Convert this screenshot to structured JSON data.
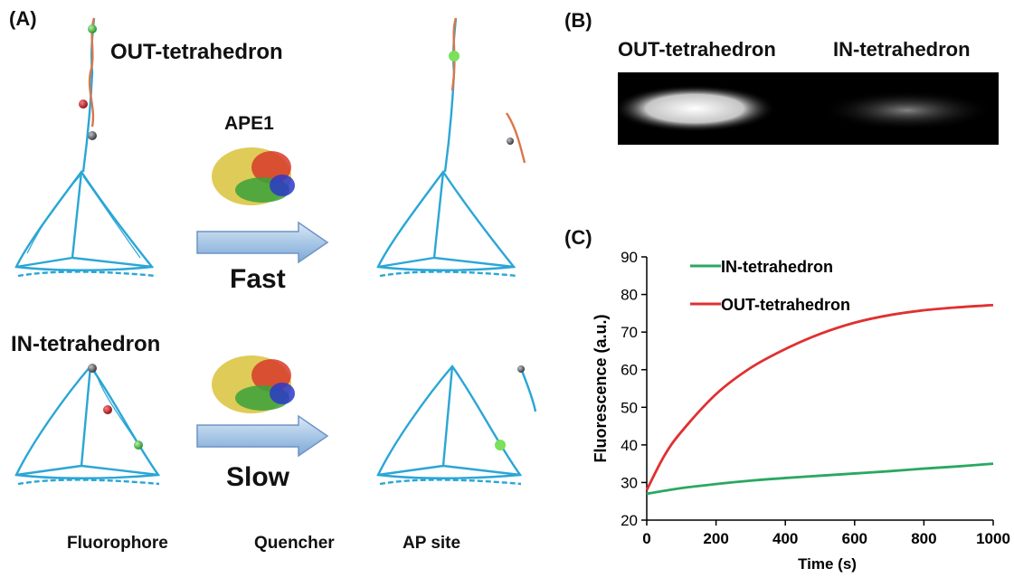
{
  "panel_a": {
    "label": "(A)",
    "out_label": "OUT-tetrahedron",
    "in_label": "IN-tetrahedron",
    "enzyme_label": "APE1",
    "fast_label": "Fast",
    "slow_label": "Slow",
    "legend": [
      {
        "label": "Fluorophore",
        "icon": "fluorophore-sphere-icon",
        "color": "#3cb83c"
      },
      {
        "label": "Quencher",
        "icon": "quencher-sphere-icon",
        "color": "#555a60"
      },
      {
        "label": "AP site",
        "icon": "ap-site-icon",
        "color": "#c8202a"
      }
    ],
    "colors": {
      "dna_blue": "#2aa6d6",
      "dna_orange": "#d9774a",
      "arrow": "#a9c7e6"
    }
  },
  "panel_b": {
    "label": "(B)",
    "lane_labels": [
      "OUT-tetrahedron",
      "IN-tetrahedron"
    ]
  },
  "panel_c": {
    "label": "(C)",
    "chart_data": {
      "type": "line",
      "xlabel": "Time (s)",
      "ylabel": "Fluorescence  (a.u.)",
      "xlim": [
        0,
        1000
      ],
      "ylim": [
        20,
        90
      ],
      "xticks": [
        0,
        200,
        400,
        600,
        800,
        1000
      ],
      "yticks": [
        20,
        30,
        40,
        50,
        60,
        70,
        80,
        90
      ],
      "legend_position": "top-left",
      "series": [
        {
          "name": "IN-tetrahedron",
          "color": "#2aa860",
          "x": [
            0,
            100,
            200,
            300,
            400,
            500,
            600,
            700,
            800,
            900,
            1000
          ],
          "y": [
            27,
            28.5,
            29.6,
            30.5,
            31.2,
            31.8,
            32.4,
            33.0,
            33.7,
            34.3,
            35.0
          ]
        },
        {
          "name": "OUT-tetrahedron",
          "color": "#e03030",
          "x": [
            0,
            50,
            100,
            200,
            300,
            400,
            500,
            600,
            700,
            800,
            900,
            1000
          ],
          "y": [
            28,
            37,
            43.5,
            53.5,
            60.5,
            65.5,
            69.5,
            72.5,
            74.5,
            75.8,
            76.6,
            77.2
          ]
        }
      ]
    }
  }
}
